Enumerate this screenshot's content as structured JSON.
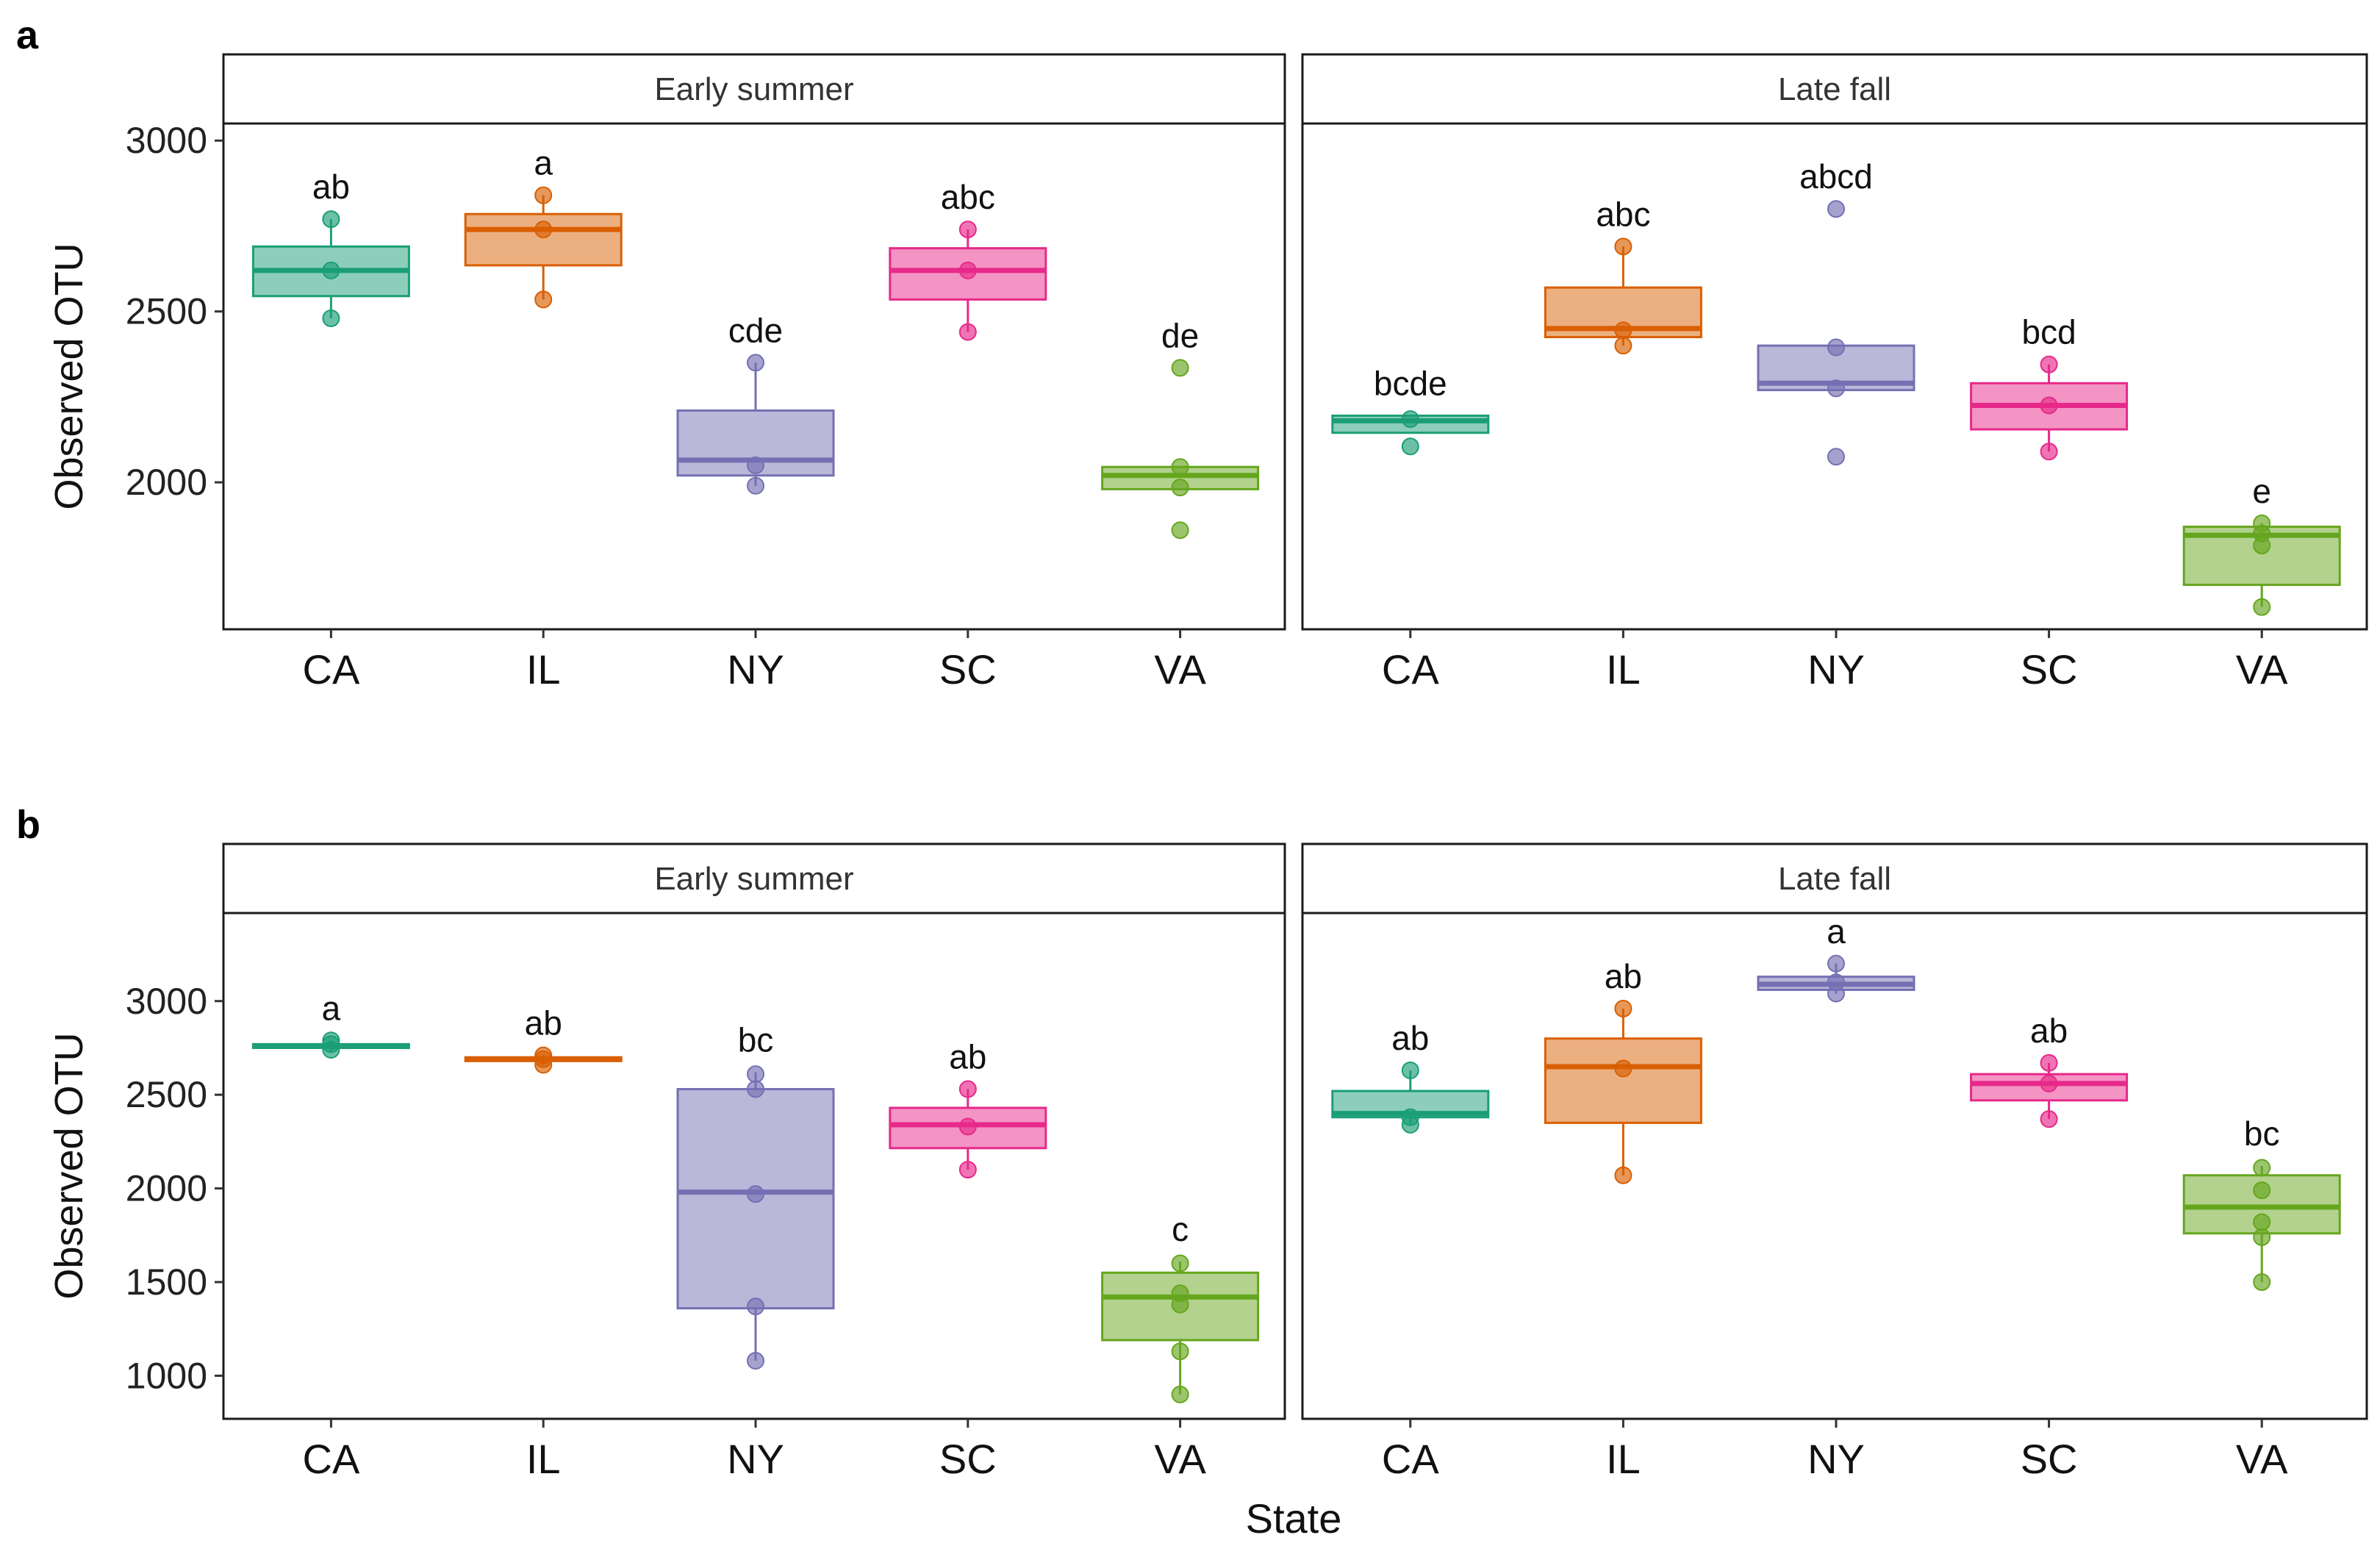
{
  "chart_data": {
    "type": "boxplot",
    "xlabel": "State",
    "categories": [
      "CA",
      "IL",
      "NY",
      "SC",
      "VA"
    ],
    "category_colors": {
      "CA": "#1b9e77",
      "IL": "#d95f02",
      "NY": "#7570b3",
      "SC": "#e7298a",
      "VA": "#66a61e"
    },
    "figures": [
      {
        "label": "a",
        "ylabel": "Observed OTU",
        "ylim": [
          1570,
          3050
        ],
        "yticks": [
          2000,
          2500,
          3000
        ],
        "facets": [
          {
            "title": "Early summer",
            "groups": [
              {
                "category": "CA",
                "q1": 2545,
                "median": 2620,
                "q3": 2690,
                "wlow": 2480,
                "whigh": 2770,
                "points": [
                  2480,
                  2620,
                  2770
                ],
                "letters": "ab"
              },
              {
                "category": "IL",
                "q1": 2635,
                "median": 2740,
                "q3": 2785,
                "wlow": 2535,
                "whigh": 2840,
                "points": [
                  2535,
                  2740,
                  2840
                ],
                "letters": "a"
              },
              {
                "category": "NY",
                "q1": 2020,
                "median": 2065,
                "q3": 2210,
                "wlow": 1990,
                "whigh": 2350,
                "points": [
                  1990,
                  2050,
                  2350
                ],
                "letters": "cde"
              },
              {
                "category": "SC",
                "q1": 2535,
                "median": 2620,
                "q3": 2685,
                "wlow": 2440,
                "whigh": 2740,
                "points": [
                  2440,
                  2620,
                  2740
                ],
                "letters": "abc"
              },
              {
                "category": "VA",
                "q1": 1980,
                "median": 2020,
                "q3": 2045,
                "wlow": 1980,
                "whigh": 2045,
                "points": [
                  1860,
                  1985,
                  2045,
                  2335
                ],
                "letters": "de"
              }
            ]
          },
          {
            "title": "Late fall",
            "groups": [
              {
                "category": "CA",
                "q1": 2145,
                "median": 2180,
                "q3": 2195,
                "wlow": 2145,
                "whigh": 2195,
                "points": [
                  2105,
                  2185
                ],
                "letters": "bcde"
              },
              {
                "category": "IL",
                "q1": 2425,
                "median": 2450,
                "q3": 2570,
                "wlow": 2400,
                "whigh": 2690,
                "points": [
                  2400,
                  2445,
                  2690
                ],
                "letters": "abc"
              },
              {
                "category": "NY",
                "q1": 2270,
                "median": 2290,
                "q3": 2400,
                "wlow": 2270,
                "whigh": 2400,
                "points": [
                  2075,
                  2275,
                  2395,
                  2800
                ],
                "letters": "abcd"
              },
              {
                "category": "SC",
                "q1": 2155,
                "median": 2225,
                "q3": 2290,
                "wlow": 2090,
                "whigh": 2345,
                "points": [
                  2090,
                  2225,
                  2345
                ],
                "letters": "bcd"
              },
              {
                "category": "VA",
                "q1": 1700,
                "median": 1845,
                "q3": 1870,
                "wlow": 1635,
                "whigh": 1880,
                "points": [
                  1635,
                  1815,
                  1850,
                  1880
                ],
                "letters": "e"
              }
            ]
          }
        ]
      },
      {
        "label": "b",
        "ylabel": "Observed OTU",
        "ylim": [
          770,
          3470
        ],
        "yticks": [
          1000,
          1500,
          2000,
          2500,
          3000
        ],
        "facets": [
          {
            "title": "Early summer",
            "groups": [
              {
                "category": "CA",
                "q1": 2750,
                "median": 2760,
                "q3": 2770,
                "wlow": 2730,
                "whigh": 2790,
                "points": [
                  2740,
                  2770,
                  2790
                ],
                "letters": "a"
              },
              {
                "category": "IL",
                "q1": 2680,
                "median": 2690,
                "q3": 2700,
                "wlow": 2660,
                "whigh": 2710,
                "points": [
                  2660,
                  2690,
                  2710
                ],
                "letters": "ab"
              },
              {
                "category": "NY",
                "q1": 1360,
                "median": 1980,
                "q3": 2530,
                "wlow": 1080,
                "whigh": 2620,
                "points": [
                  1080,
                  1370,
                  1970,
                  2530,
                  2610
                ],
                "letters": "bc"
              },
              {
                "category": "SC",
                "q1": 2215,
                "median": 2340,
                "q3": 2430,
                "wlow": 2100,
                "whigh": 2530,
                "points": [
                  2100,
                  2330,
                  2530
                ],
                "letters": "ab"
              },
              {
                "category": "VA",
                "q1": 1190,
                "median": 1420,
                "q3": 1550,
                "wlow": 900,
                "whigh": 1610,
                "points": [
                  900,
                  1130,
                  1380,
                  1440,
                  1600
                ],
                "letters": "c"
              }
            ]
          },
          {
            "title": "Late fall",
            "groups": [
              {
                "category": "CA",
                "q1": 2380,
                "median": 2400,
                "q3": 2520,
                "wlow": 2340,
                "whigh": 2630,
                "points": [
                  2340,
                  2380,
                  2630
                ],
                "letters": "ab"
              },
              {
                "category": "IL",
                "q1": 2350,
                "median": 2650,
                "q3": 2800,
                "wlow": 2070,
                "whigh": 2960,
                "points": [
                  2070,
                  2640,
                  2960
                ],
                "letters": "ab"
              },
              {
                "category": "NY",
                "q1": 3060,
                "median": 3090,
                "q3": 3130,
                "wlow": 3040,
                "whigh": 3200,
                "points": [
                  3040,
                  3100,
                  3200
                ],
                "letters": "a"
              },
              {
                "category": "SC",
                "q1": 2470,
                "median": 2560,
                "q3": 2610,
                "wlow": 2370,
                "whigh": 2670,
                "points": [
                  2370,
                  2560,
                  2670
                ],
                "letters": "ab"
              },
              {
                "category": "VA",
                "q1": 1760,
                "median": 1900,
                "q3": 2070,
                "wlow": 1500,
                "whigh": 2120,
                "points": [
                  1500,
                  1740,
                  1820,
                  1990,
                  2110
                ],
                "letters": "bc"
              }
            ]
          }
        ]
      }
    ]
  }
}
